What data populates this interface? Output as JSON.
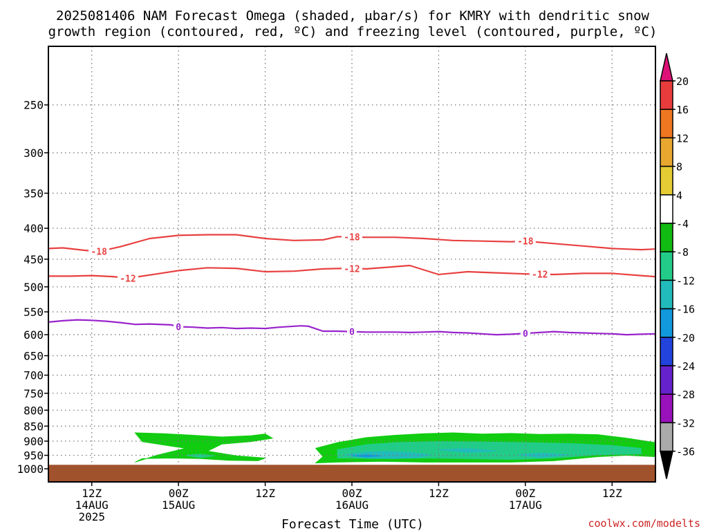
{
  "title": {
    "line1": "2025081406 NAM Forecast Omega (shaded, μbar/s) for KMRY with dendritic snow",
    "line2": "growth region (contoured, red, ºC) and freezing level (contoured, purple, ºC)"
  },
  "xlabel": "Forecast Time (UTC)",
  "credit": "coolwx.com/modelts",
  "x_ticks": [
    {
      "hour": 6,
      "label": [
        "12Z",
        "14AUG",
        "2025"
      ]
    },
    {
      "hour": 18,
      "label": [
        "00Z",
        "15AUG"
      ]
    },
    {
      "hour": 30,
      "label": [
        "12Z"
      ]
    },
    {
      "hour": 42,
      "label": [
        "00Z",
        "16AUG"
      ]
    },
    {
      "hour": 54,
      "label": [
        "12Z"
      ]
    },
    {
      "hour": 66,
      "label": [
        "00Z",
        "17AUG"
      ]
    },
    {
      "hour": 78,
      "label": [
        "12Z"
      ]
    }
  ],
  "colorbar": {
    "labels": [
      "20",
      "16",
      "12",
      "8",
      "4",
      "-4",
      "-8",
      "-12",
      "-16",
      "-20",
      "-24",
      "-28",
      "-32",
      "-36"
    ],
    "colors": [
      "#dd1177",
      "#e83c3c",
      "#ee7722",
      "#e8a830",
      "#e6cc33",
      "#ffffff",
      "#11bb11",
      "#22cc88",
      "#22bbbb",
      "#1199dd",
      "#2244dd",
      "#6622cc",
      "#9911bb",
      "#aaaaaa",
      "#000000"
    ],
    "over_color": "#dd1177",
    "under_color": "#000000"
  },
  "chart_data": {
    "type": "heatmap",
    "title": "2025081406 NAM Forecast Omega (shaded, μbar/s) for KMRY with dendritic snow growth region (contoured, red, ºC) and freezing level (contoured, purple, ºC)",
    "xlabel": "Forecast Time (UTC)",
    "ylabel": "",
    "x_unit": "forecast hour from 2025-08-14 06Z",
    "xlim": [
      0,
      84
    ],
    "y_scale": "log",
    "ylim": [
      1000,
      200
    ],
    "y_ticks": [
      250,
      300,
      350,
      400,
      450,
      500,
      550,
      600,
      650,
      700,
      750,
      800,
      850,
      900,
      950,
      1000
    ],
    "grid": true,
    "ground_color": "#a0522d",
    "ground_pressure_top": 985,
    "series": [
      {
        "name": "-18",
        "color": "#e84040",
        "label_at": [
          7,
          42,
          66
        ],
        "x": [
          0,
          2,
          5,
          7,
          10,
          14,
          18,
          22,
          26,
          30,
          34,
          38,
          40,
          44,
          48,
          52,
          56,
          60,
          64,
          66,
          70,
          74,
          78,
          82,
          84
        ],
        "y": [
          432,
          431,
          435,
          437,
          429,
          416,
          411,
          410,
          410,
          416,
          419,
          418,
          413,
          414,
          414,
          416,
          419,
          420,
          421,
          420,
          424,
          428,
          432,
          434,
          433
        ]
      },
      {
        "name": "-12",
        "color": "#e84040",
        "label_at": [
          11,
          42,
          68
        ],
        "x": [
          0,
          3,
          6,
          9,
          11,
          15,
          18,
          22,
          26,
          30,
          34,
          38,
          41,
          44,
          47,
          50,
          54,
          58,
          62,
          66,
          70,
          74,
          78,
          82,
          84
        ],
        "y": [
          480,
          480,
          479,
          481,
          484,
          476,
          470,
          465,
          466,
          472,
          471,
          467,
          466,
          467,
          464,
          461,
          477,
          472,
          474,
          476,
          477,
          475,
          475,
          479,
          481
        ]
      },
      {
        "name": "0",
        "color": "#9922cc",
        "label_at": [
          18,
          42,
          66
        ],
        "x": [
          0,
          2,
          4,
          6,
          8,
          10,
          12,
          14,
          17,
          18,
          20,
          22,
          24,
          26,
          28,
          30,
          32,
          35,
          36,
          38,
          40,
          42,
          44,
          46,
          48,
          50,
          52,
          54,
          56,
          58,
          60,
          62,
          64,
          66,
          68,
          70,
          72,
          74,
          76,
          78,
          80,
          82,
          84
        ],
        "y": [
          572,
          569,
          567,
          568,
          570,
          573,
          577,
          576,
          578,
          582,
          583,
          585,
          584,
          586,
          585,
          586,
          583,
          580,
          581,
          592,
          592,
          593,
          594,
          594,
          594,
          595,
          594,
          593,
          595,
          596,
          598,
          600,
          599,
          597,
          595,
          593,
          595,
          596,
          597,
          598,
          600,
          599,
          598
        ]
      }
    ],
    "shaded": [
      {
        "range": "-8 to -4",
        "color": "#11cc11",
        "regions": [
          {
            "x": [
              12,
              16,
              20,
              24,
              28,
              30,
              31,
              28,
              24,
              22,
              26,
              30,
              29,
              25,
              21,
              17,
              13,
              12,
              15,
              19,
              13
            ],
            "y": [
              872,
              875,
              880,
              886,
              882,
              876,
              890,
              902,
              910,
              935,
              952,
              960,
              970,
              968,
              962,
              960,
              962,
              975,
              950,
              925,
              902
            ]
          },
          {
            "x": [
              37,
              40,
              44,
              48,
              52,
              56,
              60,
              64,
              68,
              72,
              76,
              80,
              84,
              84,
              80,
              76,
              70,
              64,
              58,
              52,
              46,
              40,
              37,
              38
            ],
            "y": [
              925,
              905,
              888,
              880,
              875,
              872,
              876,
              874,
              877,
              876,
              878,
              890,
              905,
              955,
              950,
              955,
              970,
              975,
              975,
              975,
              972,
              975,
              978,
              955
            ]
          }
        ]
      },
      {
        "range": "-12 to -8",
        "color": "#22cc88",
        "regions": [
          {
            "x": [
              40,
              44,
              48,
              54,
              60,
              66,
              72,
              78,
              82,
              82,
              76,
              70,
              64,
              58,
              52,
              46,
              40
            ],
            "y": [
              930,
              912,
              905,
              902,
              903,
              905,
              908,
              915,
              925,
              945,
              948,
              960,
              965,
              962,
              960,
              962,
              960
            ]
          },
          {
            "x": [
              19,
              21,
              23,
              21
            ],
            "y": [
              950,
              946,
              952,
              958
            ]
          }
        ]
      },
      {
        "range": "-16 to -12",
        "color": "#22bbbb",
        "regions": [
          {
            "x": [
              41,
              44,
              47,
              50,
              53,
              51,
              48,
              44
            ],
            "y": [
              948,
              938,
              936,
              940,
              948,
              958,
              962,
              960
            ]
          },
          {
            "x": [
              54,
              58,
              62,
              58
            ],
            "y": [
              930,
              926,
              934,
              940
            ]
          },
          {
            "x": [
              65,
              68,
              72,
              68
            ],
            "y": [
              948,
              942,
              948,
              958
            ]
          }
        ]
      },
      {
        "range": "-20 to -16",
        "color": "#1199dd",
        "regions": [
          {
            "x": [
              42,
              44,
              46,
              44
            ],
            "y": [
              952,
              948,
              952,
              956
            ]
          }
        ]
      }
    ]
  }
}
